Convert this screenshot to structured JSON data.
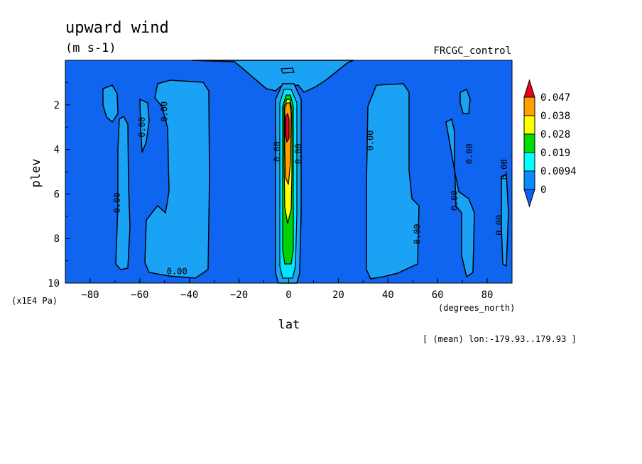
{
  "chart_data": {
    "type": "heatmap",
    "title": "upward wind",
    "units": "(m s-1)",
    "experiment": "FRCGC_control",
    "xlabel": "lat",
    "xunits": "(degrees_north)",
    "ylabel": "plev",
    "yunits": "(x1E4 Pa)",
    "footnote": "[ (mean) lon:-179.93..179.93 ]",
    "xlim": [
      -90,
      90
    ],
    "ylim": [
      10,
      0
    ],
    "x_ticks": [
      -80,
      -60,
      -40,
      -20,
      0,
      20,
      40,
      60,
      80
    ],
    "y_ticks": [
      2,
      4,
      6,
      8,
      10
    ],
    "colorbar": {
      "levels": [
        "0.047",
        "0.038",
        "0.028",
        "0.019",
        "0.0094",
        "0"
      ],
      "colors": [
        "#e8001c",
        "#ff9f00",
        "#ffff00",
        "#00dd00",
        "#00ffff",
        "#0a8cff",
        "#1060f0"
      ]
    },
    "colors": {
      "background": "#1065f0",
      "band_0_to_0094": "#1aa3f5",
      "band_0094_to_019": "#00e5ff",
      "band_019_to_028": "#00d400",
      "band_028_to_038": "#ffff00",
      "band_038_to_047": "#ffa000",
      "band_above_047": "#e8001c"
    },
    "contour_labels": [
      "0.00"
    ]
  }
}
